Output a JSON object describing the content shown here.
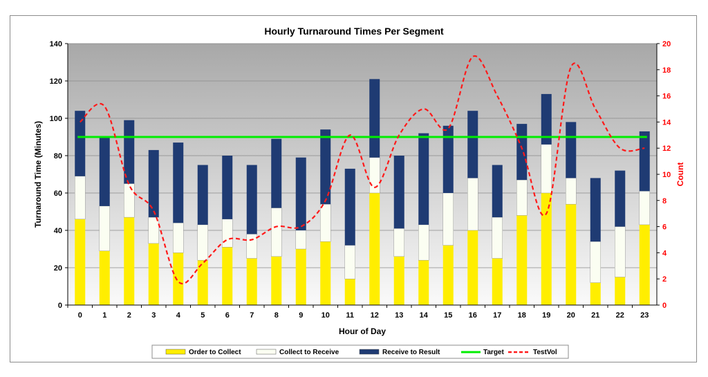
{
  "colors": {
    "order_to_collect": "#ffee00",
    "collect_to_receive": "#fbfef2",
    "receive_to_result": "#1f3b73",
    "target": "#00ee00",
    "testvol": "#ff1a1a",
    "red_axis": "#ff0000"
  },
  "chart_data": {
    "type": "bar",
    "stacked": true,
    "title": "Hourly Turnaround Times Per Segment",
    "xlabel": "Hour of Day",
    "ylabel": "Turnaround Time (Minutes)",
    "y2label": "Count",
    "ylim": [
      0,
      140
    ],
    "y2lim": [
      0,
      20
    ],
    "yticks": [
      "0",
      "20",
      "40",
      "60",
      "80",
      "100",
      "120",
      "140"
    ],
    "y2ticks": [
      "0",
      "2",
      "4",
      "6",
      "8",
      "10",
      "12",
      "14",
      "16",
      "18",
      "20"
    ],
    "categories": [
      "0",
      "1",
      "2",
      "3",
      "4",
      "5",
      "6",
      "7",
      "8",
      "9",
      "10",
      "11",
      "12",
      "13",
      "14",
      "15",
      "16",
      "17",
      "18",
      "19",
      "20",
      "21",
      "22",
      "23"
    ],
    "series": [
      {
        "name": "Order to Collect",
        "values": [
          46,
          29,
          47,
          33,
          28,
          24,
          31,
          25,
          26,
          30,
          34,
          14,
          60,
          26,
          24,
          32,
          40,
          25,
          48,
          60,
          54,
          12,
          15,
          43
        ]
      },
      {
        "name": "Collect to Receive",
        "values": [
          23,
          24,
          18,
          14,
          16,
          19,
          15,
          13,
          26,
          10,
          20,
          18,
          19,
          15,
          19,
          28,
          28,
          22,
          19,
          26,
          14,
          22,
          27,
          18
        ]
      },
      {
        "name": "Receive to Result",
        "values": [
          35,
          37,
          34,
          36,
          43,
          32,
          34,
          37,
          37,
          39,
          40,
          41,
          42,
          39,
          49,
          36,
          36,
          28,
          30,
          27,
          30,
          34,
          30,
          32
        ]
      }
    ],
    "target": {
      "name": "Target",
      "value": 90
    },
    "line": {
      "name": "TestVol",
      "axis": "y2",
      "values": [
        14,
        15.2,
        9.2,
        7.2,
        1.8,
        3.2,
        5,
        5,
        6,
        6,
        8,
        13,
        9,
        13,
        15,
        13.5,
        19,
        16,
        12,
        7,
        18.2,
        15,
        12,
        12
      ]
    },
    "legend": {
      "position": "bottom",
      "labels": [
        "Order to Collect",
        "Collect to Receive",
        "Receive to Result",
        "Target",
        "TestVol"
      ]
    },
    "grid": true
  }
}
